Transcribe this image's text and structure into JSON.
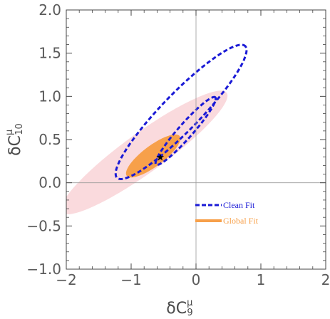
{
  "chart_data": {
    "type": "contour",
    "xlabel": {
      "main": "δC",
      "sup": "μ",
      "sub": "9"
    },
    "ylabel": {
      "main": "δC",
      "sup": "μ",
      "sub": "10"
    },
    "xlim": [
      -2,
      2
    ],
    "ylim": [
      -1,
      2
    ],
    "x_ticks": [
      {
        "value": -2,
        "label": "−2"
      },
      {
        "value": -1,
        "label": "−1"
      },
      {
        "value": 0,
        "label": "0"
      },
      {
        "value": 1,
        "label": "1"
      },
      {
        "value": 2,
        "label": "2"
      }
    ],
    "y_ticks": [
      {
        "value": -1.0,
        "label": "−1.0"
      },
      {
        "value": -0.5,
        "label": "−0.5"
      },
      {
        "value": 0.0,
        "label": "0.0"
      },
      {
        "value": 0.5,
        "label": "0.5"
      },
      {
        "value": 1.0,
        "label": "1.0"
      },
      {
        "value": 1.5,
        "label": "1.5"
      },
      {
        "value": 2.0,
        "label": "2.0"
      }
    ],
    "best_fit_point": {
      "x": -0.55,
      "y": 0.3,
      "marker": "★"
    },
    "series": [
      {
        "name": "Global Fit",
        "style": "filled",
        "color": "#f7a04a",
        "outer_color": "#fadadd",
        "regions": [
          {
            "level": "2sigma",
            "cx": -0.8,
            "cy": 0.35,
            "rx": 1.45,
            "ry": 0.25,
            "angle_deg": 28,
            "color": "#fadadd"
          },
          {
            "level": "1sigma",
            "cx": -0.66,
            "cy": 0.31,
            "rx": 0.47,
            "ry": 0.13,
            "angle_deg": 28,
            "color": "#f7a04a"
          }
        ]
      },
      {
        "name": "Clean Fit",
        "style": "dashed",
        "color": "#1a1ad6",
        "regions": [
          {
            "level": "2sigma",
            "cx": -0.23,
            "cy": 0.82,
            "rx": 1.25,
            "ry": 0.245,
            "angle_deg": 37
          },
          {
            "level": "1sigma",
            "cx": -0.16,
            "cy": 0.6,
            "rx": 0.6,
            "ry": 0.095,
            "angle_deg": 40
          }
        ]
      }
    ],
    "grid": false,
    "zero_lines": true,
    "legend_position": "lower-right"
  }
}
